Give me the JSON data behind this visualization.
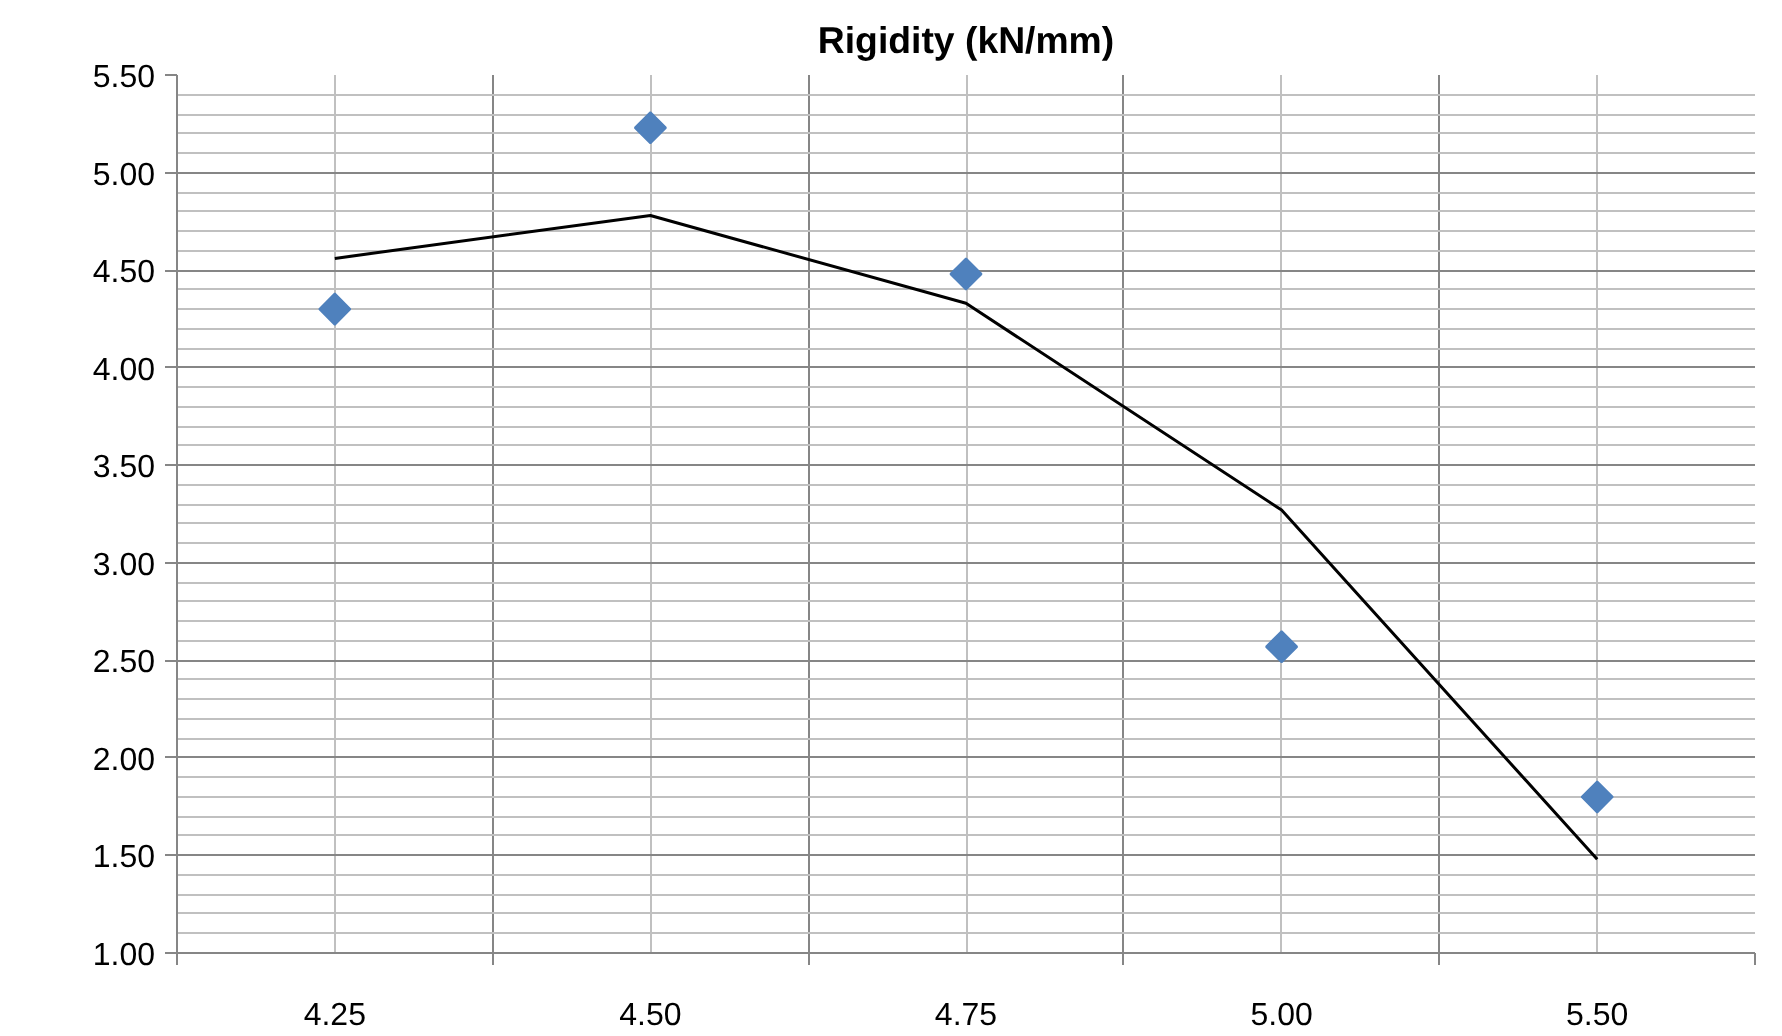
{
  "chart_data": {
    "type": "scatter",
    "title": "Rigidity (kN/mm)",
    "categories": [
      "4.25",
      "4.50",
      "4.75",
      "5.00",
      "5.50"
    ],
    "series": [
      {
        "color": "#4f81bd",
        "marker": "diamond",
        "values": [
          4.3,
          5.23,
          4.48,
          2.57,
          1.8
        ]
      },
      {
        "type": "line",
        "color": "#000000",
        "line_style": "solid",
        "values": [
          4.56,
          4.78,
          4.33,
          3.27,
          1.48
        ]
      }
    ],
    "ylim": [
      1.0,
      5.5
    ],
    "yticks": [
      {
        "value": 1.0,
        "label": "1.00"
      },
      {
        "value": 1.5,
        "label": "1.50"
      },
      {
        "value": 2.0,
        "label": "2.00"
      },
      {
        "value": 2.5,
        "label": "2.50"
      },
      {
        "value": 3.0,
        "label": "3.00"
      },
      {
        "value": 3.5,
        "label": "3.50"
      },
      {
        "value": 4.0,
        "label": "4.00"
      },
      {
        "value": 4.5,
        "label": "4.50"
      },
      {
        "value": 5.0,
        "label": "5.00"
      },
      {
        "value": 5.5,
        "label": "5.50"
      }
    ],
    "grid": true
  }
}
